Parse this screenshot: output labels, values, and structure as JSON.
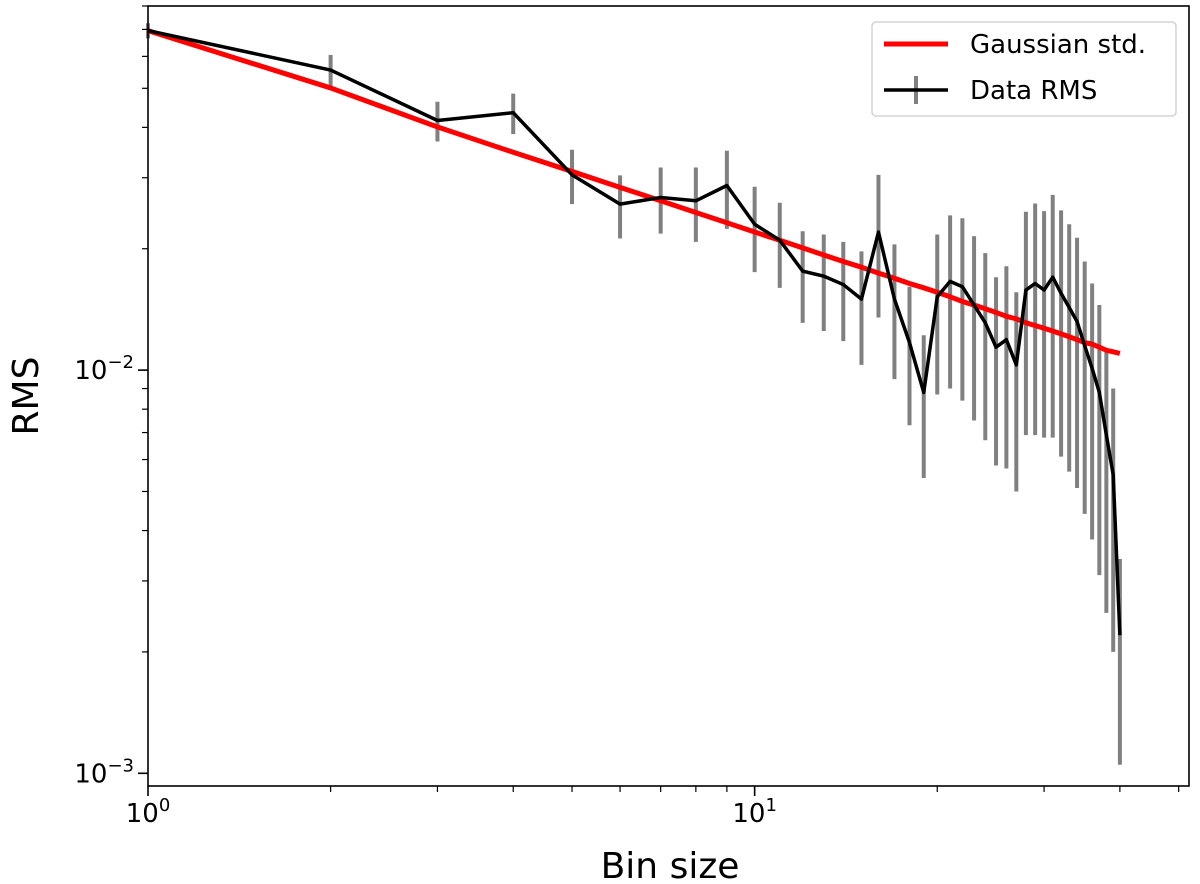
{
  "chart_data": {
    "type": "line",
    "xlabel": "Bin size",
    "ylabel": "RMS",
    "xscale": "log",
    "yscale": "log",
    "xlim": [
      1,
      52
    ],
    "ylim": [
      0.00093,
      0.08
    ],
    "grid": false,
    "legend_position": "top-right",
    "x_ticks": [
      {
        "value": 1,
        "base": "10",
        "exp": "0"
      },
      {
        "value": 10,
        "base": "10",
        "exp": "1"
      }
    ],
    "y_ticks": [
      {
        "value": 0.001,
        "base": "10",
        "exp": "−3"
      },
      {
        "value": 0.01,
        "base": "10",
        "exp": "−2"
      }
    ],
    "series": [
      {
        "name": "Gaussian std.",
        "kind": "line",
        "color": "#ff0000",
        "x": [
          1,
          2,
          3,
          4,
          5,
          6,
          7,
          8,
          9,
          10,
          11,
          12,
          13,
          14,
          15,
          16,
          17,
          18,
          19,
          20,
          21,
          22,
          23,
          24,
          25,
          26,
          27,
          28,
          29,
          30,
          31,
          32,
          33,
          34,
          35,
          36,
          37,
          38,
          39,
          40
        ],
        "y": [
          0.0695,
          0.0501,
          0.0401,
          0.0347,
          0.0311,
          0.0284,
          0.0263,
          0.0246,
          0.0232,
          0.022,
          0.021,
          0.0201,
          0.0193,
          0.0186,
          0.018,
          0.0174,
          0.0169,
          0.0164,
          0.016,
          0.0156,
          0.0152,
          0.0148,
          0.0145,
          0.0142,
          0.0139,
          0.0136,
          0.0134,
          0.0131,
          0.0129,
          0.0127,
          0.0125,
          0.0123,
          0.0121,
          0.0119,
          0.0117,
          0.0116,
          0.0114,
          0.0112,
          0.0111,
          0.011
        ]
      },
      {
        "name": "Data RMS",
        "kind": "errorbar",
        "color": "#000000",
        "errcolor": "#808080",
        "x": [
          1,
          2,
          3,
          4,
          5,
          6,
          7,
          8,
          9,
          10,
          11,
          12,
          13,
          14,
          15,
          16,
          17,
          18,
          19,
          20,
          21,
          22,
          23,
          24,
          25,
          26,
          27,
          28,
          29,
          30,
          31,
          32,
          33,
          34,
          35,
          36,
          37,
          38,
          39,
          40
        ],
        "y": [
          0.0695,
          0.0555,
          0.0416,
          0.0435,
          0.0305,
          0.0258,
          0.0268,
          0.0263,
          0.0287,
          0.023,
          0.021,
          0.0176,
          0.0171,
          0.0163,
          0.015,
          0.022,
          0.015,
          0.0117,
          0.0088,
          0.0152,
          0.0166,
          0.0161,
          0.0145,
          0.0131,
          0.0114,
          0.0119,
          0.0103,
          0.0158,
          0.0164,
          0.0158,
          0.017,
          0.0155,
          0.0143,
          0.0132,
          0.0115,
          0.0101,
          0.0088,
          0.0069,
          0.0055,
          0.0022
        ],
        "yerr_low": [
          0.0665,
          0.0505,
          0.0369,
          0.0385,
          0.0258,
          0.0212,
          0.0218,
          0.0208,
          0.0224,
          0.0175,
          0.016,
          0.0131,
          0.0125,
          0.0118,
          0.0103,
          0.0135,
          0.0095,
          0.0073,
          0.0054,
          0.0087,
          0.009,
          0.0084,
          0.0075,
          0.0067,
          0.0058,
          0.0057,
          0.005,
          0.0069,
          0.0069,
          0.0068,
          0.0068,
          0.0061,
          0.0056,
          0.0051,
          0.0044,
          0.0038,
          0.0031,
          0.0025,
          0.002,
          0.00105
        ],
        "yerr_high": [
          0.0725,
          0.0605,
          0.0463,
          0.0485,
          0.0352,
          0.0304,
          0.0318,
          0.0318,
          0.035,
          0.0285,
          0.026,
          0.0221,
          0.0217,
          0.0208,
          0.0197,
          0.0305,
          0.0205,
          0.0161,
          0.0122,
          0.0217,
          0.0242,
          0.0238,
          0.0215,
          0.0195,
          0.017,
          0.0181,
          0.0156,
          0.0247,
          0.0259,
          0.0248,
          0.0272,
          0.0249,
          0.023,
          0.0213,
          0.0186,
          0.0164,
          0.0145,
          0.0113,
          0.009,
          0.0034
        ]
      }
    ]
  }
}
